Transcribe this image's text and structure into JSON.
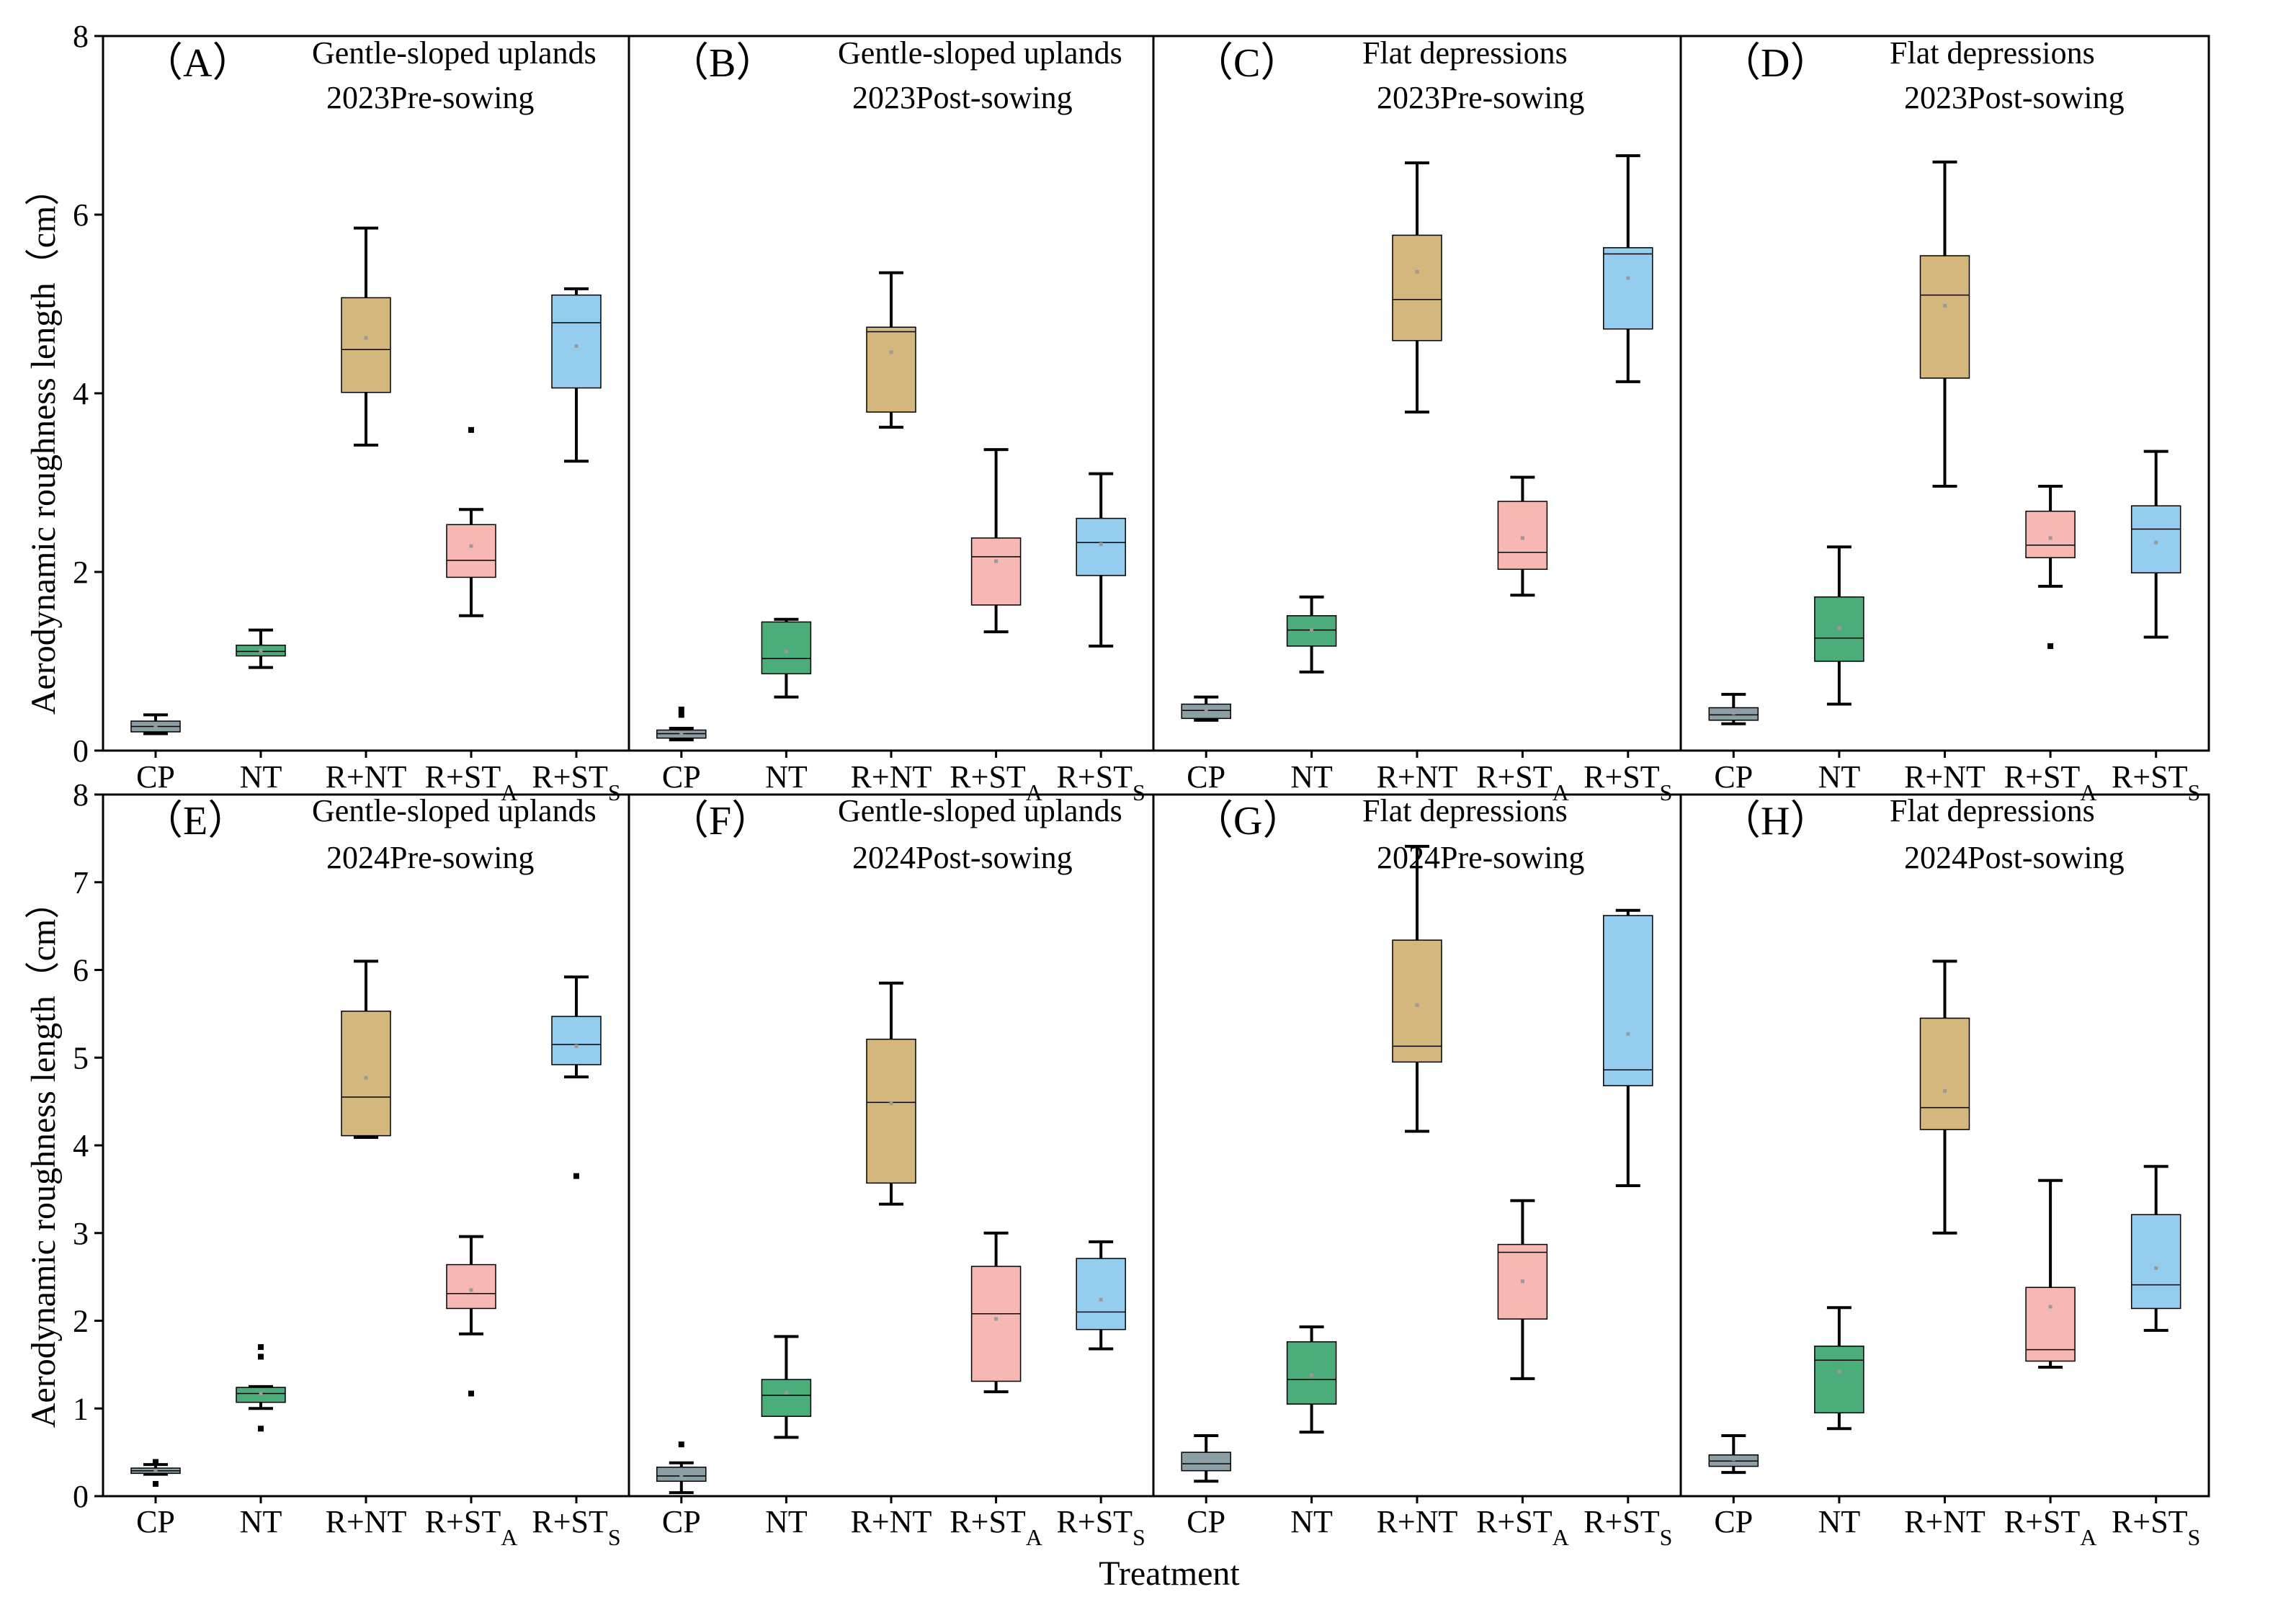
{
  "figure": {
    "xlabel": "Treatment",
    "ylabel": "Aerodynamic roughness length（cm）",
    "colors": [
      "#8c9fa6",
      "#4aad7a",
      "#d4b77c",
      "#f7b8b3",
      "#95cdee"
    ],
    "categories": [
      {
        "main": "CP",
        "sub": ""
      },
      {
        "main": "NT",
        "sub": ""
      },
      {
        "main": "R+NT",
        "sub": ""
      },
      {
        "main": "R+ST",
        "sub": "A"
      },
      {
        "main": "R+ST",
        "sub": "S"
      }
    ]
  },
  "chart_data": [
    {
      "type": "box",
      "id": "A",
      "label": "（A）",
      "title_line1": "Gentle-sloped uplands",
      "title_line2": "2023Pre-sowing",
      "ylim": [
        0,
        8
      ],
      "yticks": [
        "0",
        "2",
        "4",
        "6",
        "8"
      ],
      "boxes": [
        {
          "whisker_low": 0.19,
          "q1": 0.21,
          "median": 0.27,
          "q3": 0.33,
          "whisker_high": 0.4,
          "mean": 0.27,
          "outliers": []
        },
        {
          "whisker_low": 0.93,
          "q1": 1.06,
          "median": 1.11,
          "q3": 1.18,
          "whisker_high": 1.35,
          "mean": 1.12,
          "outliers": []
        },
        {
          "whisker_low": 3.42,
          "q1": 4.01,
          "median": 4.49,
          "q3": 5.07,
          "whisker_high": 5.85,
          "mean": 4.62,
          "outliers": []
        },
        {
          "whisker_low": 1.51,
          "q1": 1.94,
          "median": 2.13,
          "q3": 2.53,
          "whisker_high": 2.7,
          "mean": 2.29,
          "outliers": [
            3.59
          ]
        },
        {
          "whisker_low": 3.24,
          "q1": 4.06,
          "median": 4.79,
          "q3": 5.1,
          "whisker_high": 5.17,
          "mean": 4.53,
          "outliers": []
        }
      ]
    },
    {
      "type": "box",
      "id": "B",
      "label": "（B）",
      "title_line1": "Gentle-sloped uplands",
      "title_line2": "2023Post-sowing",
      "ylim": [
        0,
        8
      ],
      "yticks": [
        "0",
        "2",
        "4",
        "6",
        "8"
      ],
      "boxes": [
        {
          "whisker_low": 0.12,
          "q1": 0.14,
          "median": 0.19,
          "q3": 0.23,
          "whisker_high": 0.25,
          "mean": 0.19,
          "outliers": [
            0.4,
            0.46
          ]
        },
        {
          "whisker_low": 0.6,
          "q1": 0.86,
          "median": 1.03,
          "q3": 1.44,
          "whisker_high": 1.47,
          "mean": 1.11,
          "outliers": []
        },
        {
          "whisker_low": 3.62,
          "q1": 3.79,
          "median": 4.69,
          "q3": 4.74,
          "whisker_high": 5.35,
          "mean": 4.46,
          "outliers": []
        },
        {
          "whisker_low": 1.33,
          "q1": 1.63,
          "median": 2.17,
          "q3": 2.38,
          "whisker_high": 3.37,
          "mean": 2.12,
          "outliers": []
        },
        {
          "whisker_low": 1.17,
          "q1": 1.96,
          "median": 2.33,
          "q3": 2.6,
          "whisker_high": 3.1,
          "mean": 2.31,
          "outliers": []
        }
      ]
    },
    {
      "type": "box",
      "id": "C",
      "label": "（C）",
      "title_line1": "Flat depressions",
      "title_line2": "2023Pre-sowing",
      "ylim": [
        0,
        8
      ],
      "yticks": [
        "0",
        "2",
        "4",
        "6",
        "8"
      ],
      "boxes": [
        {
          "whisker_low": 0.34,
          "q1": 0.36,
          "median": 0.45,
          "q3": 0.52,
          "whisker_high": 0.6,
          "mean": 0.45,
          "outliers": []
        },
        {
          "whisker_low": 0.88,
          "q1": 1.17,
          "median": 1.35,
          "q3": 1.51,
          "whisker_high": 1.72,
          "mean": 1.35,
          "outliers": []
        },
        {
          "whisker_low": 3.79,
          "q1": 4.59,
          "median": 5.05,
          "q3": 5.77,
          "whisker_high": 6.58,
          "mean": 5.36,
          "outliers": []
        },
        {
          "whisker_low": 1.74,
          "q1": 2.03,
          "median": 2.22,
          "q3": 2.79,
          "whisker_high": 3.06,
          "mean": 2.38,
          "outliers": []
        },
        {
          "whisker_low": 4.13,
          "q1": 4.72,
          "median": 5.56,
          "q3": 5.63,
          "whisker_high": 6.66,
          "mean": 5.29,
          "outliers": []
        }
      ]
    },
    {
      "type": "box",
      "id": "D",
      "label": "（D）",
      "title_line1": "Flat depressions",
      "title_line2": "2023Post-sowing",
      "ylim": [
        0,
        8
      ],
      "yticks": [
        "0",
        "2",
        "4",
        "6",
        "8"
      ],
      "boxes": [
        {
          "whisker_low": 0.3,
          "q1": 0.34,
          "median": 0.4,
          "q3": 0.48,
          "whisker_high": 0.63,
          "mean": 0.42,
          "outliers": []
        },
        {
          "whisker_low": 0.52,
          "q1": 1.0,
          "median": 1.26,
          "q3": 1.72,
          "whisker_high": 2.28,
          "mean": 1.37,
          "outliers": []
        },
        {
          "whisker_low": 2.96,
          "q1": 4.17,
          "median": 5.1,
          "q3": 5.54,
          "whisker_high": 6.59,
          "mean": 4.98,
          "outliers": []
        },
        {
          "whisker_low": 1.84,
          "q1": 2.16,
          "median": 2.3,
          "q3": 2.68,
          "whisker_high": 2.96,
          "mean": 2.38,
          "outliers": [
            1.17
          ]
        },
        {
          "whisker_low": 1.27,
          "q1": 1.99,
          "median": 2.48,
          "q3": 2.74,
          "whisker_high": 3.35,
          "mean": 2.33,
          "outliers": []
        }
      ]
    },
    {
      "type": "box",
      "id": "E",
      "label": "（E）",
      "title_line1": "Gentle-sloped uplands",
      "title_line2": "2024Pre-sowing",
      "ylim": [
        0,
        8
      ],
      "yticks": [
        "0",
        "1",
        "2",
        "3",
        "4",
        "5",
        "6",
        "7",
        "8"
      ],
      "boxes": [
        {
          "whisker_low": 0.25,
          "q1": 0.26,
          "median": 0.29,
          "q3": 0.32,
          "whisker_high": 0.36,
          "mean": 0.29,
          "outliers": [
            0.14,
            0.39
          ]
        },
        {
          "whisker_low": 1.0,
          "q1": 1.07,
          "median": 1.17,
          "q3": 1.24,
          "whisker_high": 1.25,
          "mean": 1.17,
          "outliers": [
            0.77,
            1.59,
            1.7
          ]
        },
        {
          "whisker_low": 4.09,
          "q1": 4.11,
          "median": 4.55,
          "q3": 5.53,
          "whisker_high": 6.1,
          "mean": 4.77,
          "outliers": []
        },
        {
          "whisker_low": 1.85,
          "q1": 2.14,
          "median": 2.31,
          "q3": 2.64,
          "whisker_high": 2.96,
          "mean": 2.35,
          "outliers": [
            1.17
          ]
        },
        {
          "whisker_low": 4.78,
          "q1": 4.92,
          "median": 5.15,
          "q3": 5.47,
          "whisker_high": 5.92,
          "mean": 5.13,
          "outliers": [
            3.65
          ]
        }
      ]
    },
    {
      "type": "box",
      "id": "F",
      "label": "（F）",
      "title_line1": "Gentle-sloped uplands",
      "title_line2": "2024Post-sowing",
      "ylim": [
        0,
        8
      ],
      "yticks": [
        "0",
        "1",
        "2",
        "3",
        "4",
        "5",
        "6",
        "7",
        "8"
      ],
      "boxes": [
        {
          "whisker_low": 0.04,
          "q1": 0.17,
          "median": 0.23,
          "q3": 0.33,
          "whisker_high": 0.38,
          "mean": 0.24,
          "outliers": [
            0.59
          ]
        },
        {
          "whisker_low": 0.67,
          "q1": 0.91,
          "median": 1.15,
          "q3": 1.33,
          "whisker_high": 1.82,
          "mean": 1.18,
          "outliers": []
        },
        {
          "whisker_low": 3.33,
          "q1": 3.57,
          "median": 4.49,
          "q3": 5.21,
          "whisker_high": 5.85,
          "mean": 4.48,
          "outliers": []
        },
        {
          "whisker_low": 1.19,
          "q1": 1.31,
          "median": 2.08,
          "q3": 2.62,
          "whisker_high": 3.0,
          "mean": 2.02,
          "outliers": []
        },
        {
          "whisker_low": 1.68,
          "q1": 1.9,
          "median": 2.1,
          "q3": 2.71,
          "whisker_high": 2.9,
          "mean": 2.24,
          "outliers": []
        }
      ]
    },
    {
      "type": "box",
      "id": "G",
      "label": "（G）",
      "title_line1": "Flat depressions",
      "title_line2": "2024Pre-sowing",
      "ylim": [
        0,
        8
      ],
      "yticks": [
        "0",
        "1",
        "2",
        "3",
        "4",
        "5",
        "6",
        "7",
        "8"
      ],
      "boxes": [
        {
          "whisker_low": 0.17,
          "q1": 0.29,
          "median": 0.37,
          "q3": 0.5,
          "whisker_high": 0.69,
          "mean": 0.4,
          "outliers": []
        },
        {
          "whisker_low": 0.73,
          "q1": 1.05,
          "median": 1.33,
          "q3": 1.76,
          "whisker_high": 1.93,
          "mean": 1.38,
          "outliers": []
        },
        {
          "whisker_low": 4.16,
          "q1": 4.95,
          "median": 5.13,
          "q3": 6.34,
          "whisker_high": 7.41,
          "mean": 5.6,
          "outliers": []
        },
        {
          "whisker_low": 1.34,
          "q1": 2.02,
          "median": 2.78,
          "q3": 2.87,
          "whisker_high": 3.37,
          "mean": 2.45,
          "outliers": []
        },
        {
          "whisker_low": 3.54,
          "q1": 4.68,
          "median": 4.86,
          "q3": 6.62,
          "whisker_high": 6.68,
          "mean": 5.27,
          "outliers": []
        }
      ]
    },
    {
      "type": "box",
      "id": "H",
      "label": "（H）",
      "title_line1": "Flat depressions",
      "title_line2": "2024Post-sowing",
      "ylim": [
        0,
        8
      ],
      "yticks": [
        "0",
        "1",
        "2",
        "3",
        "4",
        "5",
        "6",
        "7",
        "8"
      ],
      "boxes": [
        {
          "whisker_low": 0.27,
          "q1": 0.34,
          "median": 0.4,
          "q3": 0.47,
          "whisker_high": 0.69,
          "mean": 0.42,
          "outliers": []
        },
        {
          "whisker_low": 0.77,
          "q1": 0.95,
          "median": 1.55,
          "q3": 1.71,
          "whisker_high": 2.15,
          "mean": 1.42,
          "outliers": []
        },
        {
          "whisker_low": 3.0,
          "q1": 4.18,
          "median": 4.43,
          "q3": 5.45,
          "whisker_high": 6.1,
          "mean": 4.62,
          "outliers": []
        },
        {
          "whisker_low": 1.47,
          "q1": 1.54,
          "median": 1.67,
          "q3": 2.38,
          "whisker_high": 3.6,
          "mean": 2.16,
          "outliers": []
        },
        {
          "whisker_low": 1.89,
          "q1": 2.14,
          "median": 2.41,
          "q3": 3.21,
          "whisker_high": 3.76,
          "mean": 2.6,
          "outliers": []
        }
      ]
    }
  ]
}
